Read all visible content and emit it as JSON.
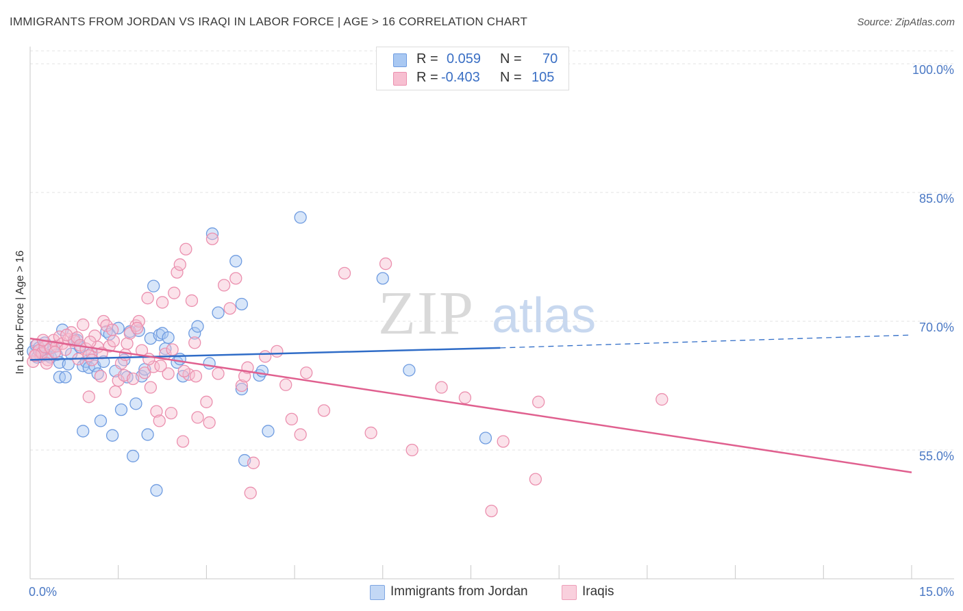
{
  "title": "IMMIGRANTS FROM JORDAN VS IRAQI IN LABOR FORCE | AGE > 16 CORRELATION CHART",
  "source": "Source: ZipAtlas.com",
  "watermark": {
    "zip": "ZIP",
    "atlas": "atlas"
  },
  "stats": {
    "r_label": "R =",
    "n_label": "N =",
    "rows": [
      {
        "r": "0.059",
        "n": "70",
        "color": "#a9c8f2",
        "border": "#6e9be0"
      },
      {
        "r": "-0.403",
        "n": "105",
        "color": "#f7bfd1",
        "border": "#eb8fae"
      }
    ]
  },
  "legend": {
    "items": [
      {
        "label": "Immigrants from Jordan",
        "color": "#c3d8f5",
        "border": "#7ea6e2"
      },
      {
        "label": "Iraqis",
        "color": "#f9d0dd",
        "border": "#ee9fb9"
      }
    ]
  },
  "chart_data": {
    "type": "scatter",
    "ylabel": "In Labor Force | Age > 16",
    "xlim": [
      0,
      15
    ],
    "ylim": [
      40,
      102
    ],
    "y_ticks": [
      {
        "value": 100,
        "label": "100.0%"
      },
      {
        "value": 85,
        "label": "85.0%"
      },
      {
        "value": 70,
        "label": "70.0%"
      },
      {
        "value": 55,
        "label": "55.0%"
      }
    ],
    "x_tick_labels": {
      "min": "0.0%",
      "max": "15.0%"
    },
    "x_minor_ticks": [
      1.5,
      3,
      4.5,
      6,
      7.5,
      9,
      10.5,
      12,
      13.5,
      15
    ],
    "colors": {
      "jordan": "#6e9be0",
      "jordan_fill": "#a9c8f2",
      "jordan_line": "#2f6cc7",
      "iraqi": "#eb8fae",
      "iraqi_fill": "#f7bfd1",
      "iraqi_line": "#e0608f"
    },
    "series": [
      {
        "name": "Immigrants from Jordan",
        "points": [
          [
            0.05,
            66.5
          ],
          [
            0.1,
            67.2
          ],
          [
            0.12,
            65.8
          ],
          [
            0.15,
            66.9
          ],
          [
            0.2,
            66.2
          ],
          [
            0.25,
            67.5
          ],
          [
            0.3,
            66.0
          ],
          [
            0.35,
            65.8
          ],
          [
            0.4,
            67.0
          ],
          [
            0.45,
            66.1
          ],
          [
            0.5,
            65.2
          ],
          [
            0.5,
            63.5
          ],
          [
            0.55,
            69.0
          ],
          [
            0.6,
            63.5
          ],
          [
            0.65,
            65.0
          ],
          [
            0.7,
            66.2
          ],
          [
            0.75,
            67.9
          ],
          [
            0.8,
            67.8
          ],
          [
            0.85,
            67.0
          ],
          [
            0.9,
            57.2
          ],
          [
            0.9,
            64.8
          ],
          [
            0.95,
            65.3
          ],
          [
            1.0,
            64.6
          ],
          [
            1.05,
            66.3
          ],
          [
            1.1,
            64.8
          ],
          [
            1.15,
            63.9
          ],
          [
            1.2,
            58.4
          ],
          [
            1.25,
            65.3
          ],
          [
            1.3,
            68.8
          ],
          [
            1.35,
            68.5
          ],
          [
            1.4,
            56.7
          ],
          [
            1.45,
            64.2
          ],
          [
            1.5,
            69.2
          ],
          [
            1.55,
            59.7
          ],
          [
            1.6,
            65.5
          ],
          [
            1.65,
            63.5
          ],
          [
            1.7,
            68.8
          ],
          [
            1.75,
            54.3
          ],
          [
            1.8,
            60.4
          ],
          [
            1.85,
            68.9
          ],
          [
            1.9,
            63.6
          ],
          [
            1.95,
            64.4
          ],
          [
            2.0,
            56.8
          ],
          [
            2.05,
            68.0
          ],
          [
            2.1,
            74.1
          ],
          [
            2.15,
            50.3
          ],
          [
            2.2,
            68.4
          ],
          [
            2.25,
            68.6
          ],
          [
            2.3,
            66.8
          ],
          [
            2.35,
            68.1
          ],
          [
            2.5,
            65.2
          ],
          [
            2.55,
            65.6
          ],
          [
            2.6,
            63.6
          ],
          [
            2.8,
            68.6
          ],
          [
            2.85,
            69.4
          ],
          [
            3.05,
            65.1
          ],
          [
            3.1,
            80.2
          ],
          [
            3.2,
            71.0
          ],
          [
            3.5,
            77.0
          ],
          [
            3.6,
            72.0
          ],
          [
            3.6,
            62.1
          ],
          [
            3.65,
            53.8
          ],
          [
            3.9,
            63.7
          ],
          [
            3.95,
            64.2
          ],
          [
            4.05,
            57.2
          ],
          [
            4.6,
            82.1
          ],
          [
            6.0,
            75.0
          ],
          [
            6.45,
            64.3
          ],
          [
            7.75,
            56.4
          ],
          [
            0.18,
            65.9
          ]
        ]
      },
      {
        "name": "Iraqis",
        "points": [
          [
            0.05,
            65.3
          ],
          [
            0.1,
            66.1
          ],
          [
            0.12,
            67.3
          ],
          [
            0.15,
            66.6
          ],
          [
            0.2,
            66.3
          ],
          [
            0.25,
            67.0
          ],
          [
            0.3,
            65.5
          ],
          [
            0.35,
            66.9
          ],
          [
            0.4,
            67.8
          ],
          [
            0.45,
            67.1
          ],
          [
            0.5,
            68.2
          ],
          [
            0.55,
            67.4
          ],
          [
            0.6,
            66.7
          ],
          [
            0.65,
            67.9
          ],
          [
            0.7,
            68.7
          ],
          [
            0.75,
            67.7
          ],
          [
            0.8,
            68.1
          ],
          [
            0.85,
            67.2
          ],
          [
            0.9,
            69.6
          ],
          [
            0.95,
            66.8
          ],
          [
            1.0,
            66.0
          ],
          [
            1.0,
            61.2
          ],
          [
            1.05,
            65.5
          ],
          [
            1.1,
            68.3
          ],
          [
            1.15,
            67.0
          ],
          [
            1.2,
            63.6
          ],
          [
            1.25,
            70.0
          ],
          [
            1.3,
            69.5
          ],
          [
            1.35,
            67.1
          ],
          [
            1.4,
            69.0
          ],
          [
            1.45,
            61.8
          ],
          [
            1.5,
            63.1
          ],
          [
            1.55,
            65.1
          ],
          [
            1.6,
            63.7
          ],
          [
            1.65,
            67.4
          ],
          [
            1.7,
            68.6
          ],
          [
            1.75,
            63.3
          ],
          [
            1.8,
            69.5
          ],
          [
            1.85,
            70.0
          ],
          [
            1.9,
            66.6
          ],
          [
            1.95,
            64.0
          ],
          [
            2.0,
            72.7
          ],
          [
            2.05,
            62.3
          ],
          [
            2.1,
            64.7
          ],
          [
            2.15,
            59.5
          ],
          [
            2.2,
            58.4
          ],
          [
            2.25,
            72.2
          ],
          [
            2.3,
            66.2
          ],
          [
            2.35,
            63.9
          ],
          [
            2.4,
            59.3
          ],
          [
            2.45,
            73.3
          ],
          [
            2.5,
            75.7
          ],
          [
            2.55,
            76.6
          ],
          [
            2.6,
            56.0
          ],
          [
            2.65,
            78.4
          ],
          [
            2.7,
            63.8
          ],
          [
            2.75,
            72.4
          ],
          [
            2.8,
            67.5
          ],
          [
            2.85,
            58.8
          ],
          [
            3.0,
            60.6
          ],
          [
            3.05,
            58.2
          ],
          [
            3.1,
            79.6
          ],
          [
            3.2,
            63.9
          ],
          [
            3.3,
            74.2
          ],
          [
            3.4,
            71.5
          ],
          [
            3.5,
            75.0
          ],
          [
            3.6,
            62.5
          ],
          [
            3.65,
            63.6
          ],
          [
            3.7,
            64.6
          ],
          [
            3.75,
            50.0
          ],
          [
            3.8,
            53.5
          ],
          [
            4.0,
            65.9
          ],
          [
            4.2,
            66.5
          ],
          [
            4.35,
            62.6
          ],
          [
            4.45,
            58.6
          ],
          [
            4.6,
            56.8
          ],
          [
            4.7,
            64.0
          ],
          [
            5.0,
            59.6
          ],
          [
            5.35,
            75.6
          ],
          [
            5.8,
            57.0
          ],
          [
            6.05,
            76.7
          ],
          [
            6.5,
            55.0
          ],
          [
            7.0,
            62.3
          ],
          [
            7.4,
            61.1
          ],
          [
            7.85,
            47.9
          ],
          [
            8.05,
            56.0
          ],
          [
            8.6,
            51.6
          ],
          [
            8.65,
            60.6
          ],
          [
            10.75,
            60.9
          ],
          [
            0.08,
            66.0
          ],
          [
            0.22,
            67.8
          ],
          [
            0.42,
            66.4
          ],
          [
            0.62,
            68.4
          ],
          [
            0.82,
            65.6
          ],
          [
            1.02,
            67.6
          ],
          [
            1.22,
            66.3
          ],
          [
            1.42,
            67.7
          ],
          [
            1.62,
            66.1
          ],
          [
            1.82,
            69.2
          ],
          [
            2.02,
            65.6
          ],
          [
            2.22,
            64.8
          ],
          [
            2.42,
            66.7
          ],
          [
            2.62,
            64.2
          ],
          [
            2.82,
            63.6
          ],
          [
            0.28,
            65.1
          ]
        ]
      }
    ],
    "trend_lines": [
      {
        "series": "Immigrants from Jordan",
        "x0": 0,
        "y0": 65.5,
        "x1": 8.0,
        "y1": 66.9,
        "dash_to_x": 15,
        "dash_to_y": 68.4
      },
      {
        "series": "Iraqis",
        "x0": 0,
        "y0": 68.0,
        "x1": 15,
        "y1": 52.4
      }
    ]
  }
}
